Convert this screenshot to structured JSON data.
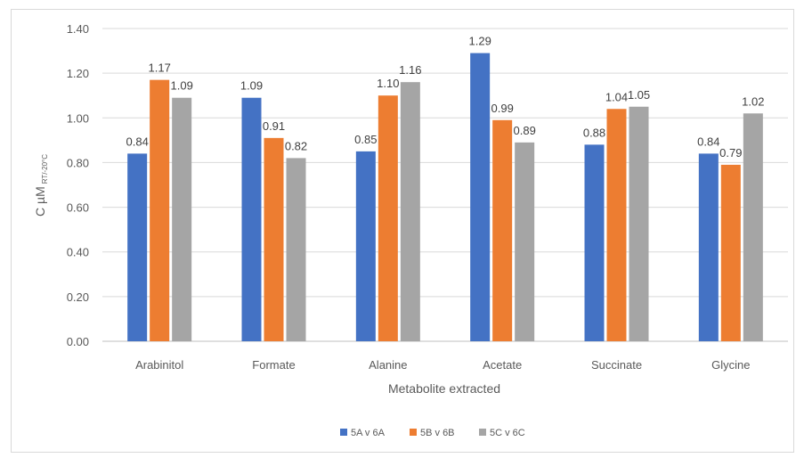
{
  "chart_data": {
    "type": "bar",
    "title": "",
    "xlabel": "Metabolite extracted",
    "ylabel": {
      "main": "C µM",
      "subscript": "RT/-20°C"
    },
    "ylim": [
      0,
      1.4
    ],
    "ytick_step": 0.2,
    "yticks": [
      "0.00",
      "0.20",
      "0.40",
      "0.60",
      "0.80",
      "1.00",
      "1.20",
      "1.40"
    ],
    "grid": true,
    "legend_position": "bottom",
    "categories": [
      "Arabinitol",
      "Formate",
      "Alanine",
      "Acetate",
      "Succinate",
      "Glycine"
    ],
    "series": [
      {
        "name": "5A v 6A",
        "color": "#4472c4",
        "values": [
          0.84,
          1.09,
          0.85,
          1.29,
          0.88,
          0.84
        ],
        "labels": [
          "0.84",
          "1.09",
          "0.85",
          "1.29",
          "0.88",
          "0.84"
        ]
      },
      {
        "name": "5B v 6B",
        "color": "#ed7d31",
        "values": [
          1.17,
          0.91,
          1.1,
          0.99,
          1.04,
          0.79
        ],
        "labels": [
          "1.17",
          "0.91",
          "1.10",
          "0.99",
          "1.04",
          "0.79"
        ]
      },
      {
        "name": "5C v 6C",
        "color": "#a5a5a5",
        "values": [
          1.09,
          0.82,
          1.16,
          0.89,
          1.05,
          1.02
        ],
        "labels": [
          "1.09",
          "0.82",
          "1.16",
          "0.89",
          "1.05",
          "1.02"
        ]
      }
    ]
  }
}
